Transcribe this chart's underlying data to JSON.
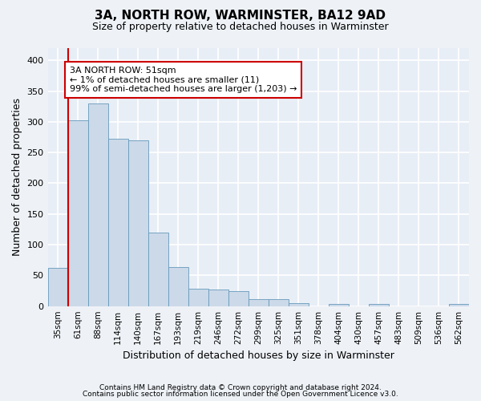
{
  "title": "3A, NORTH ROW, WARMINSTER, BA12 9AD",
  "subtitle": "Size of property relative to detached houses in Warminster",
  "xlabel": "Distribution of detached houses by size in Warminster",
  "ylabel": "Number of detached properties",
  "categories": [
    "35sqm",
    "61sqm",
    "88sqm",
    "114sqm",
    "140sqm",
    "167sqm",
    "193sqm",
    "219sqm",
    "246sqm",
    "272sqm",
    "299sqm",
    "325sqm",
    "351sqm",
    "378sqm",
    "404sqm",
    "430sqm",
    "457sqm",
    "483sqm",
    "509sqm",
    "536sqm",
    "562sqm"
  ],
  "values": [
    62,
    303,
    330,
    272,
    270,
    120,
    63,
    28,
    27,
    24,
    11,
    11,
    5,
    0,
    4,
    0,
    3,
    0,
    0,
    0,
    3
  ],
  "bar_color": "#ccd9e8",
  "bar_edge_color": "#6699bb",
  "highlight_color": "#cc0000",
  "annotation_line1": "3A NORTH ROW: 51sqm",
  "annotation_line2": "← 1% of detached houses are smaller (11)",
  "annotation_line3": "99% of semi-detached houses are larger (1,203) →",
  "annotation_box_color": "#ffffff",
  "annotation_box_edge_color": "#cc0000",
  "ylim": [
    0,
    420
  ],
  "yticks": [
    0,
    50,
    100,
    150,
    200,
    250,
    300,
    350,
    400
  ],
  "footer_line1": "Contains HM Land Registry data © Crown copyright and database right 2024.",
  "footer_line2": "Contains public sector information licensed under the Open Government Licence v3.0.",
  "background_color": "#eef2f7",
  "plot_background_color": "#e8eef6",
  "grid_color": "#ffffff",
  "title_fontsize": 11,
  "subtitle_fontsize": 9,
  "tick_fontsize": 7.5,
  "ylabel_fontsize": 9,
  "xlabel_fontsize": 9
}
